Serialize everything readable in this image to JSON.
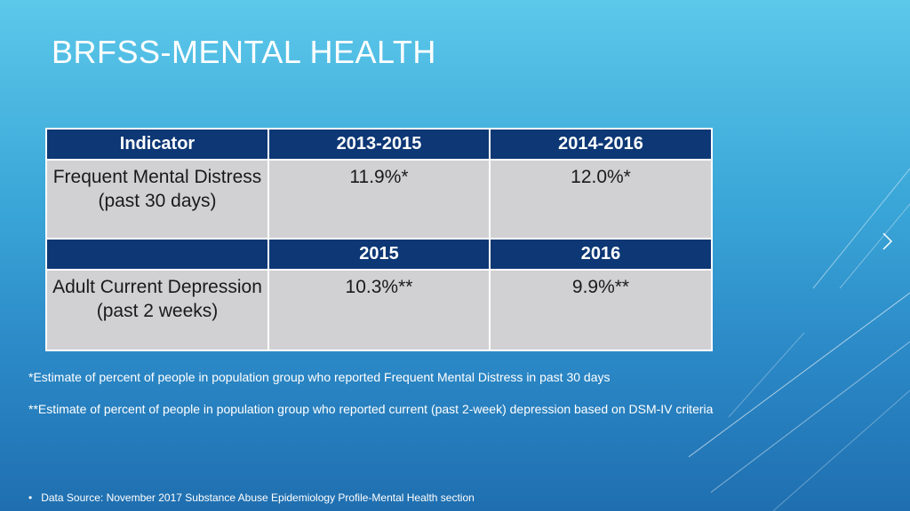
{
  "slide": {
    "title": "BRFSS-MENTAL HEALTH"
  },
  "table": {
    "header1": [
      "Indicator",
      "2013-2015",
      "2014-2016"
    ],
    "row1": [
      "Frequent Mental Distress (past 30 days)",
      "11.9%*",
      "12.0%*"
    ],
    "header2": [
      "",
      "2015",
      "2016"
    ],
    "row2": [
      "Adult Current Depression (past 2 weeks)",
      "10.3%**",
      "9.9%**"
    ]
  },
  "footnotes": {
    "note1": "*Estimate of percent of people in population group who reported Frequent Mental Distress in past 30 days",
    "note2": "**Estimate of percent of people in population group who reported current (past 2-week) depression based on DSM-IV criteria"
  },
  "source": {
    "bullet": "•",
    "text": "Data Source: November 2017 Substance Abuse Epidemiology Profile-Mental Health section"
  },
  "colors": {
    "header_fill": "#0d3775",
    "body_fill": "#d1d1d4",
    "background_top": "#5cc8ea",
    "background_bottom": "#1f6fb0"
  },
  "icons": {
    "next_slide": "chevron-right-icon"
  }
}
